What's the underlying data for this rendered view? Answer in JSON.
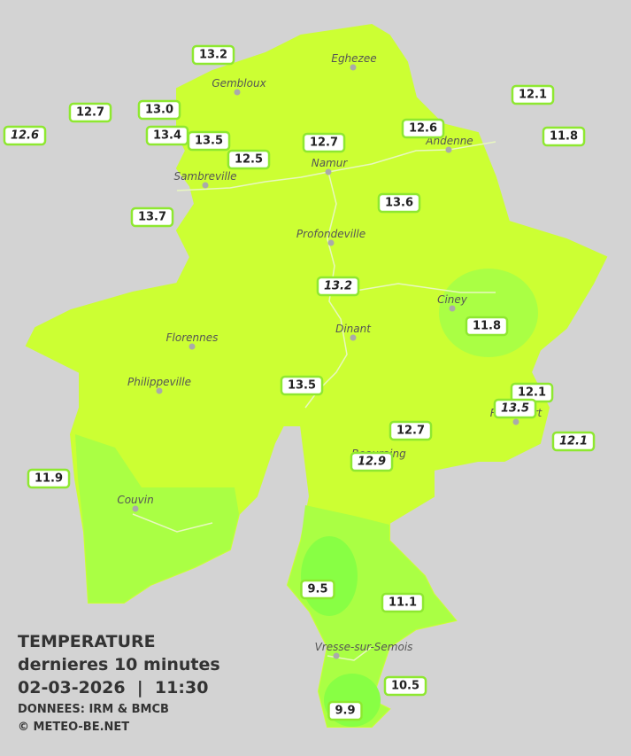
{
  "legend": {
    "title": "TEMPERATURE",
    "subtitle": "dernieres 10 minutes",
    "datetime": "02-03-2026  |  11:30",
    "source": "DONNEES: IRM & BMCB",
    "credit": "© METEO-BE.NET"
  },
  "cities": [
    "Eghezee",
    "Gembloux",
    "Andenne",
    "Namur",
    "Sambreville",
    "Profondeville",
    "Ciney",
    "Dinant",
    "Florennes",
    "Philippeville",
    "Couvin",
    "Beauraing",
    "Rochefort",
    "Vresse-sur-Semois"
  ],
  "stations": [
    {
      "label": "13.2",
      "italic": false
    },
    {
      "label": "12.7",
      "italic": false
    },
    {
      "label": "13.0",
      "italic": false
    },
    {
      "label": "12.6",
      "italic": true
    },
    {
      "label": "13.4",
      "italic": false
    },
    {
      "label": "13.5",
      "italic": false
    },
    {
      "label": "12.5",
      "italic": false
    },
    {
      "label": "12.7",
      "italic": false
    },
    {
      "label": "12.6",
      "italic": false
    },
    {
      "label": "12.1",
      "italic": false
    },
    {
      "label": "11.8",
      "italic": false
    },
    {
      "label": "13.7",
      "italic": false
    },
    {
      "label": "13.6",
      "italic": false
    },
    {
      "label": "13.2",
      "italic": true
    },
    {
      "label": "11.8",
      "italic": false
    },
    {
      "label": "13.5",
      "italic": false
    },
    {
      "label": "12.1",
      "italic": false
    },
    {
      "label": "13.5",
      "italic": true
    },
    {
      "label": "12.1",
      "italic": true
    },
    {
      "label": "12.7",
      "italic": false
    },
    {
      "label": "12.9",
      "italic": true
    },
    {
      "label": "11.9",
      "italic": false
    },
    {
      "label": "9.5",
      "italic": false
    },
    {
      "label": "11.1",
      "italic": false
    },
    {
      "label": "10.5",
      "italic": false
    },
    {
      "label": "9.9",
      "italic": false
    }
  ]
}
